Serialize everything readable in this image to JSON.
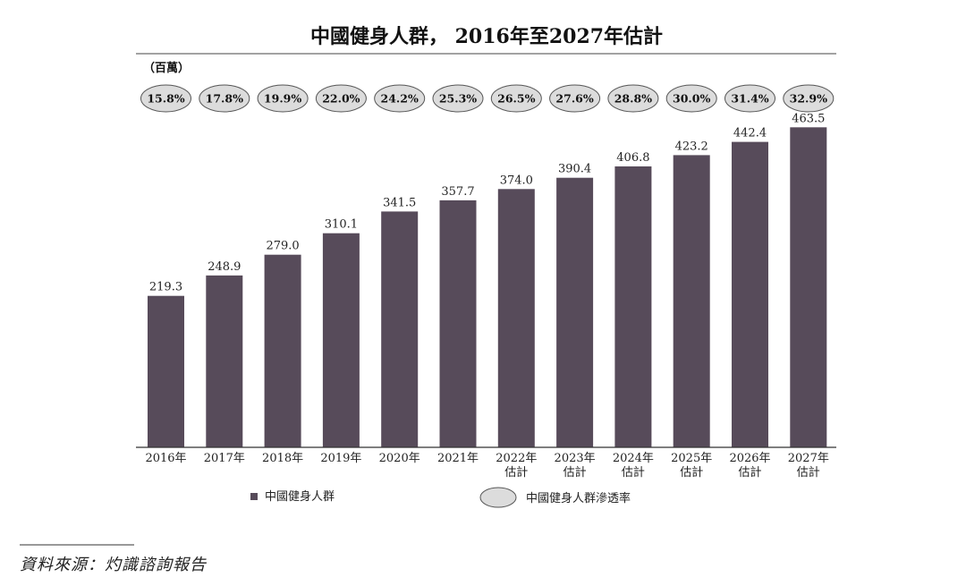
{
  "chart_data": {
    "type": "bar",
    "title": "中國健身人群， 2016年至2027年估計",
    "unit_label": "（百萬）",
    "categories": [
      "2016年",
      "2017年",
      "2018年",
      "2019年",
      "2020年",
      "2021年",
      "2022年 估計",
      "2023年 估計",
      "2024年 估計",
      "2025年 估計",
      "2026年 估計",
      "2027年 估計"
    ],
    "category_lines": [
      [
        "2016年"
      ],
      [
        "2017年"
      ],
      [
        "2018年"
      ],
      [
        "2019年"
      ],
      [
        "2020年"
      ],
      [
        "2021年"
      ],
      [
        "2022年",
        "估計"
      ],
      [
        "2023年",
        "估計"
      ],
      [
        "2024年",
        "估計"
      ],
      [
        "2025年",
        "估計"
      ],
      [
        "2026年",
        "估計"
      ],
      [
        "2027年",
        "估計"
      ]
    ],
    "series": [
      {
        "name": "中國健身人群",
        "values": [
          219.3,
          248.9,
          279.0,
          310.1,
          341.5,
          357.7,
          374.0,
          390.4,
          406.8,
          423.2,
          442.4,
          463.5
        ],
        "value_labels": [
          "219.3",
          "248.9",
          "279.0",
          "310.1",
          "341.5",
          "357.7",
          "374.0",
          "390.4",
          "406.8",
          "423.2",
          "442.4",
          "463.5"
        ]
      },
      {
        "name": "中國健身人群滲透率",
        "values": [
          15.8,
          17.8,
          19.9,
          22.0,
          24.2,
          25.3,
          26.5,
          27.6,
          28.8,
          30.0,
          31.4,
          32.9
        ],
        "value_labels": [
          "15.8%",
          "17.8%",
          "19.9%",
          "22.0%",
          "24.2%",
          "25.3%",
          "26.5%",
          "27.6%",
          "28.8%",
          "30.0%",
          "31.4%",
          "32.9%"
        ]
      }
    ],
    "ylim": [
      0,
      480
    ],
    "grid": false,
    "legend_position": "bottom",
    "xlabel": "",
    "ylabel": ""
  },
  "source": "資料來源：灼識諮詢報告",
  "colors": {
    "bar": "#574b5a",
    "rate_ellipse_fill": "#dcdcdc",
    "rate_ellipse_stroke": "#555555",
    "axis": "#333333",
    "title_rule": "#444444"
  }
}
